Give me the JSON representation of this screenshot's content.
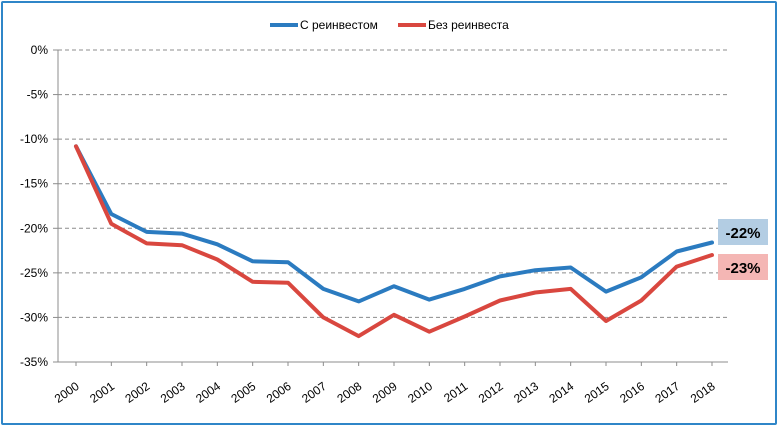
{
  "chart_data": {
    "type": "line",
    "title": "",
    "xlabel": "",
    "ylabel": "",
    "categories": [
      "2000",
      "2001",
      "2002",
      "2003",
      "2004",
      "2005",
      "2006",
      "2007",
      "2008",
      "2009",
      "2010",
      "2011",
      "2012",
      "2013",
      "2014",
      "2015",
      "2016",
      "2017",
      "2018"
    ],
    "y_ticks": [
      "0%",
      "-5%",
      "-10%",
      "-15%",
      "-20%",
      "-25%",
      "-30%",
      "-35%"
    ],
    "y_tick_values": [
      0,
      -5,
      -10,
      -15,
      -20,
      -25,
      -30,
      -35
    ],
    "ylim": [
      -35,
      0
    ],
    "grid": "horizontal dashed",
    "legend_position": "top",
    "series": [
      {
        "name": "С реинвестом",
        "color": "#2b7bc0",
        "values": [
          -10.8,
          -18.4,
          -20.4,
          -20.6,
          -21.8,
          -23.7,
          -23.8,
          -26.8,
          -28.2,
          -26.5,
          -28.0,
          -26.8,
          -25.4,
          -24.7,
          -24.4,
          -27.1,
          -25.5,
          -22.6,
          -21.6
        ],
        "end_label": "-22%",
        "end_label_bg": "#b3cde3"
      },
      {
        "name": "Без реинвеста",
        "color": "#d9473f",
        "values": [
          -10.8,
          -19.5,
          -21.7,
          -21.9,
          -23.5,
          -26.0,
          -26.1,
          -30.0,
          -32.1,
          -29.7,
          -31.6,
          -29.9,
          -28.1,
          -27.2,
          -26.8,
          -30.4,
          -28.1,
          -24.3,
          -23.0
        ],
        "end_label": "-23%",
        "end_label_bg": "#f4b6b4"
      }
    ]
  }
}
